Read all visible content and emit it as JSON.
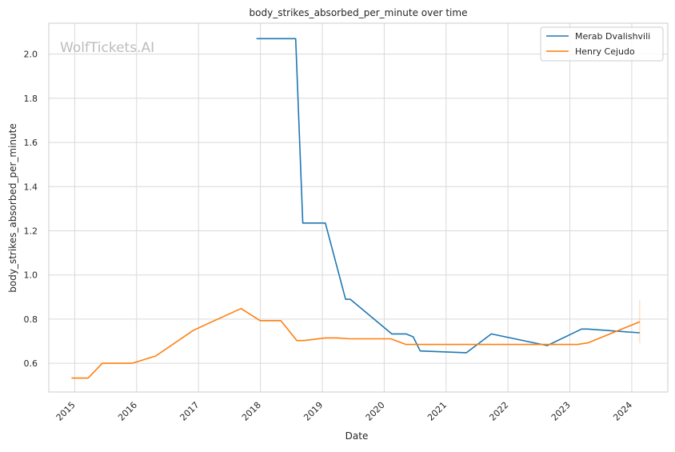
{
  "chart_data": {
    "type": "line",
    "title": "body_strikes_absorbed_per_minute over time",
    "xlabel": "Date",
    "ylabel": "body_strikes_absorbed_per_minute",
    "watermark": "WolfTickets.AI",
    "xlim": [
      "2014-08-01",
      "2024-08-01"
    ],
    "ylim": [
      0.47,
      2.14
    ],
    "x_ticks": [
      "2015",
      "2016",
      "2017",
      "2018",
      "2019",
      "2020",
      "2021",
      "2022",
      "2023",
      "2024"
    ],
    "y_ticks": [
      "0.6",
      "0.8",
      "1.0",
      "1.2",
      "1.4",
      "1.6",
      "1.8",
      "2.0"
    ],
    "grid": true,
    "legend_position": "top-right",
    "series": [
      {
        "name": "Merab Dvalishvili",
        "color": "#1f77b4",
        "points": [
          [
            "2017-12-09",
            2.07
          ],
          [
            "2018-07-28",
            2.07
          ],
          [
            "2018-09-08",
            1.235
          ],
          [
            "2019-01-19",
            1.235
          ],
          [
            "2019-05-18",
            0.89
          ],
          [
            "2019-06-15",
            0.89
          ],
          [
            "2020-02-15",
            0.733
          ],
          [
            "2020-05-09",
            0.733
          ],
          [
            "2020-06-20",
            0.72
          ],
          [
            "2020-08-01",
            0.656
          ],
          [
            "2021-05-01",
            0.648
          ],
          [
            "2021-09-25",
            0.733
          ],
          [
            "2022-08-20",
            0.68
          ],
          [
            "2023-03-11",
            0.755
          ],
          [
            "2023-04-15",
            0.755
          ],
          [
            "2024-02-17",
            0.738
          ]
        ]
      },
      {
        "name": "Henry Cejudo",
        "color": "#ff7f0e",
        "points": [
          [
            "2014-12-13",
            0.533
          ],
          [
            "2015-03-21",
            0.533
          ],
          [
            "2015-06-13",
            0.6
          ],
          [
            "2015-12-05",
            0.6
          ],
          [
            "2016-04-23",
            0.633
          ],
          [
            "2016-12-03",
            0.75
          ],
          [
            "2017-09-09",
            0.848
          ],
          [
            "2017-12-30",
            0.793
          ],
          [
            "2018-05-01",
            0.793
          ],
          [
            "2018-08-04",
            0.703
          ],
          [
            "2018-09-15",
            0.703
          ],
          [
            "2019-01-19",
            0.715
          ],
          [
            "2019-04-01",
            0.715
          ],
          [
            "2019-06-08",
            0.711
          ],
          [
            "2020-02-09",
            0.711
          ],
          [
            "2020-05-09",
            0.685
          ],
          [
            "2023-02-15",
            0.685
          ],
          [
            "2023-04-20",
            0.693
          ],
          [
            "2024-02-17",
            0.788
          ]
        ]
      }
    ],
    "error_bar": {
      "x": "2024-02-17",
      "y_low": 0.69,
      "y_high": 0.885,
      "color": "#ff7f0e"
    }
  }
}
